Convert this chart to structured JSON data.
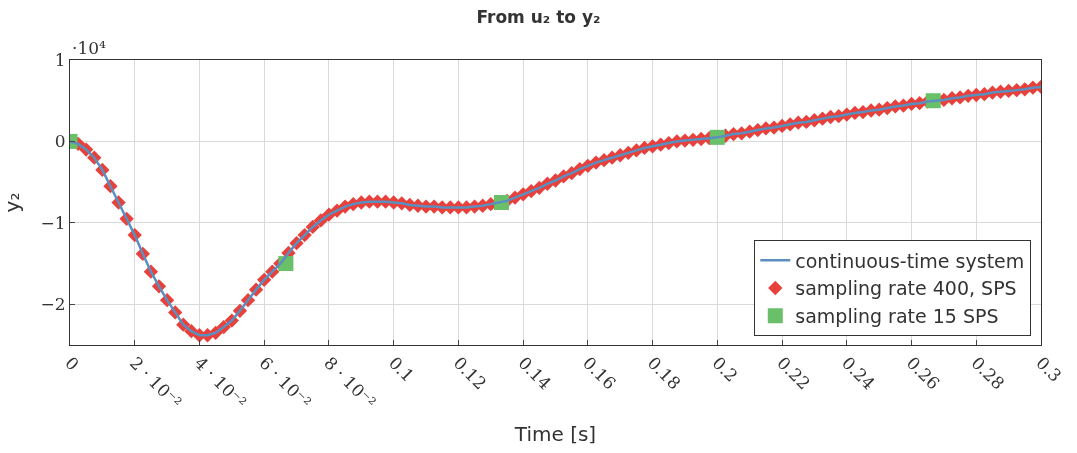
{
  "chart_data": {
    "type": "line",
    "title": "From u₂ to y₂",
    "xlabel": "Time [s]",
    "ylabel": "y₂",
    "annotations": [
      "·10⁴"
    ],
    "x": [
      0,
      0.0025,
      0.005,
      0.0075,
      0.01,
      0.0125,
      0.015,
      0.0175,
      0.02,
      0.0225,
      0.025,
      0.0275,
      0.03,
      0.0325,
      0.035,
      0.0375,
      0.04,
      0.0425,
      0.045,
      0.0475,
      0.05,
      0.0525,
      0.055,
      0.0575,
      0.06,
      0.0625,
      0.065,
      0.0675,
      0.07,
      0.0725,
      0.075,
      0.0775,
      0.08,
      0.0825,
      0.085,
      0.0875,
      0.09,
      0.0925,
      0.095,
      0.0975,
      0.1,
      0.1025,
      0.105,
      0.1075,
      0.11,
      0.1125,
      0.115,
      0.1175,
      0.12,
      0.1225,
      0.125,
      0.1275,
      0.13,
      0.1325,
      0.135,
      0.1375,
      0.14,
      0.1425,
      0.145,
      0.1475,
      0.15,
      0.1525,
      0.155,
      0.1575,
      0.16,
      0.1625,
      0.165,
      0.1675,
      0.17,
      0.1725,
      0.175,
      0.1775,
      0.18,
      0.1825,
      0.185,
      0.1875,
      0.19,
      0.1925,
      0.195,
      0.1975,
      0.2,
      0.2025,
      0.205,
      0.2075,
      0.21,
      0.2125,
      0.215,
      0.2175,
      0.22,
      0.2225,
      0.225,
      0.2275,
      0.23,
      0.2325,
      0.235,
      0.2375,
      0.24,
      0.2425,
      0.245,
      0.2475,
      0.25,
      0.2525,
      0.255,
      0.2575,
      0.26,
      0.2625,
      0.265,
      0.2675,
      0.27,
      0.2725,
      0.275,
      0.2775,
      0.28,
      0.2825,
      0.285,
      0.2875,
      0.29,
      0.2925,
      0.295,
      0.2975,
      0.3
    ],
    "series": [
      {
        "name": "continuous-time system",
        "color": "#5b8fc0",
        "marker": "none",
        "values": [
          0,
          -0.03,
          -0.1,
          -0.2,
          -0.35,
          -0.55,
          -0.75,
          -0.95,
          -1.15,
          -1.38,
          -1.6,
          -1.78,
          -1.95,
          -2.1,
          -2.25,
          -2.33,
          -2.38,
          -2.38,
          -2.35,
          -2.28,
          -2.2,
          -2.08,
          -1.95,
          -1.82,
          -1.7,
          -1.6,
          -1.5,
          -1.37,
          -1.25,
          -1.15,
          -1.05,
          -0.97,
          -0.9,
          -0.85,
          -0.8,
          -0.77,
          -0.75,
          -0.74,
          -0.74,
          -0.74,
          -0.75,
          -0.76,
          -0.78,
          -0.79,
          -0.8,
          -0.8,
          -0.81,
          -0.81,
          -0.81,
          -0.81,
          -0.8,
          -0.79,
          -0.77,
          -0.75,
          -0.73,
          -0.69,
          -0.65,
          -0.61,
          -0.57,
          -0.52,
          -0.48,
          -0.43,
          -0.39,
          -0.34,
          -0.3,
          -0.26,
          -0.23,
          -0.2,
          -0.17,
          -0.14,
          -0.11,
          -0.08,
          -0.06,
          -0.04,
          -0.02,
          0,
          0.01,
          0.02,
          0.03,
          0.04,
          0.05,
          0.07,
          0.09,
          0.1,
          0.12,
          0.14,
          0.16,
          0.17,
          0.19,
          0.21,
          0.23,
          0.24,
          0.26,
          0.28,
          0.3,
          0.31,
          0.33,
          0.35,
          0.36,
          0.38,
          0.39,
          0.41,
          0.43,
          0.44,
          0.46,
          0.47,
          0.49,
          0.5,
          0.51,
          0.53,
          0.54,
          0.56,
          0.57,
          0.58,
          0.6,
          0.61,
          0.62,
          0.63,
          0.64,
          0.66,
          0.67
        ]
      },
      {
        "name": "sampling rate 400, SPS",
        "type": "scatter",
        "color": "#e8413c",
        "marker": "diamond",
        "values": [
          null,
          -0.03,
          -0.1,
          -0.2,
          -0.35,
          -0.55,
          -0.75,
          -0.95,
          -1.15,
          -1.38,
          -1.6,
          -1.78,
          -1.95,
          -2.1,
          -2.25,
          -2.33,
          -2.38,
          -2.38,
          -2.35,
          -2.28,
          -2.2,
          -2.08,
          -1.95,
          -1.82,
          -1.7,
          -1.6,
          -1.5,
          -1.37,
          -1.25,
          -1.15,
          -1.05,
          -0.97,
          -0.9,
          -0.85,
          -0.8,
          -0.77,
          -0.75,
          -0.74,
          -0.74,
          -0.74,
          -0.75,
          -0.76,
          -0.78,
          -0.79,
          -0.8,
          -0.8,
          -0.81,
          -0.81,
          -0.81,
          -0.81,
          -0.8,
          -0.79,
          -0.77,
          null,
          -0.73,
          -0.69,
          -0.65,
          -0.61,
          -0.57,
          -0.52,
          -0.48,
          -0.43,
          -0.39,
          -0.34,
          -0.3,
          -0.26,
          -0.23,
          -0.2,
          -0.17,
          -0.14,
          -0.11,
          -0.08,
          -0.06,
          -0.04,
          -0.02,
          0,
          0.01,
          0.02,
          0.03,
          0.04,
          null,
          0.07,
          0.09,
          0.1,
          0.12,
          0.14,
          0.16,
          0.17,
          0.19,
          0.21,
          0.23,
          0.24,
          0.26,
          0.28,
          0.3,
          0.31,
          0.33,
          0.35,
          0.36,
          0.38,
          0.39,
          0.41,
          0.43,
          0.44,
          0.46,
          0.47,
          0.49,
          null,
          0.51,
          0.53,
          0.54,
          0.56,
          0.57,
          0.58,
          0.6,
          0.61,
          0.62,
          0.63,
          0.64,
          0.66,
          0.67
        ]
      },
      {
        "name": "sampling rate 15 SPS",
        "type": "scatter",
        "color": "#6abf69",
        "marker": "square",
        "x": [
          0,
          0.0667,
          0.1333,
          0.2,
          0.2667
        ],
        "values": [
          0,
          -1.5,
          -0.75,
          0.05,
          0.5
        ]
      }
    ],
    "xlim": [
      0,
      0.3
    ],
    "xticks": [
      0,
      {
        "value": 0.02,
        "label": "2 · 10⁻²"
      },
      {
        "value": 0.04,
        "label": "4 · 10⁻²"
      },
      {
        "value": 0.06,
        "label": "6 · 10⁻²"
      },
      {
        "value": 0.08,
        "label": "8 · 10⁻²"
      },
      0.1,
      0.12,
      0.14,
      0.16,
      0.18,
      0.2,
      0.22,
      0.24,
      0.26,
      0.28,
      0.3
    ],
    "ylim": [
      -2.5,
      1
    ],
    "yticks": [
      {
        "value": -2,
        "label": "−2"
      },
      {
        "value": -1,
        "label": "−1"
      },
      0,
      1
    ],
    "grid": true,
    "legend": "bottom right"
  }
}
